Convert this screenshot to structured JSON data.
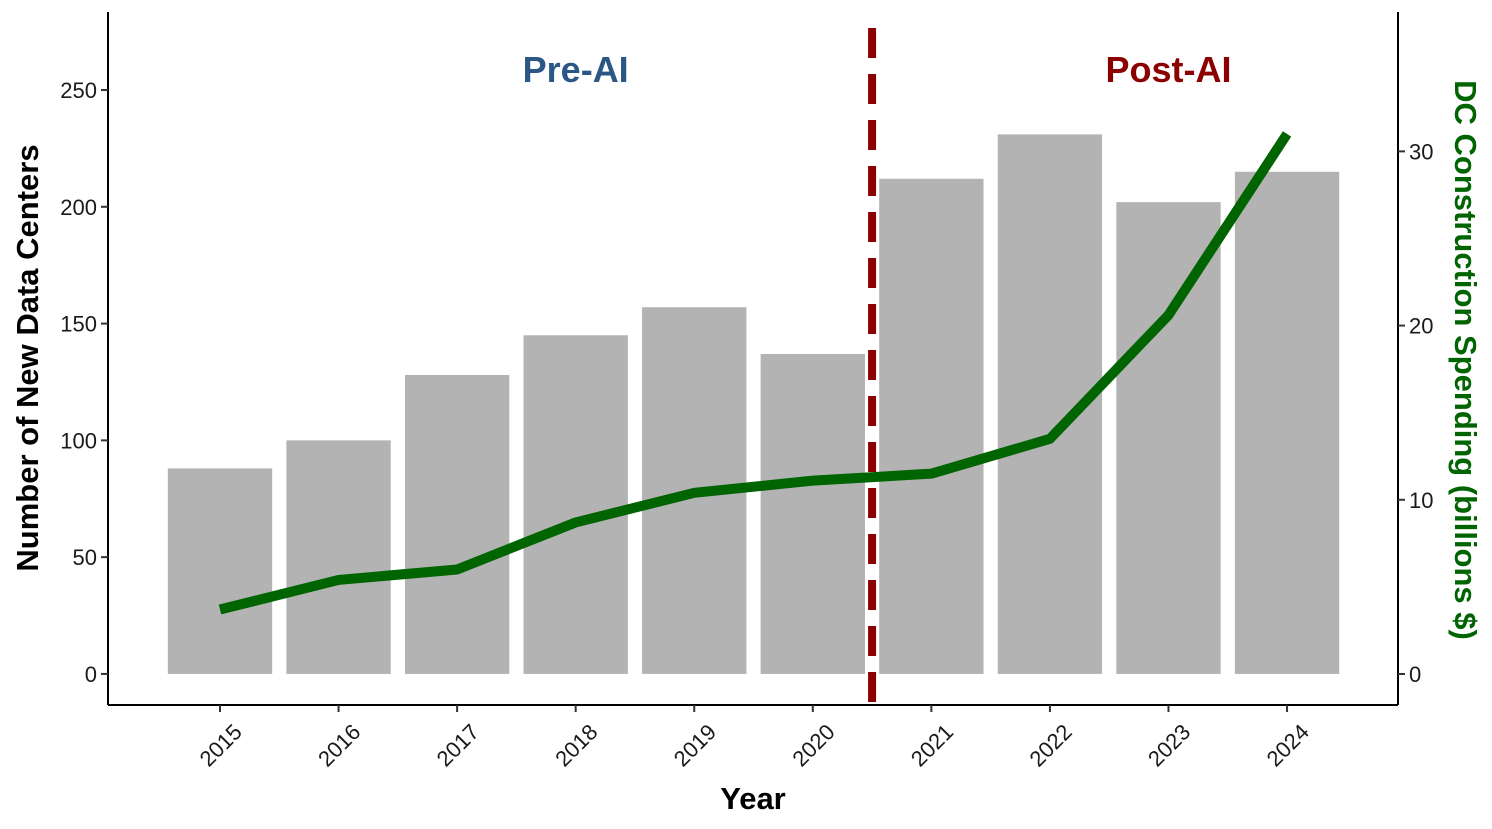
{
  "chart_data": {
    "type": "bar",
    "x_label": "Year",
    "y_label": "Number of New Data Centers",
    "y2_label": "DC Construction Spending (billions $)",
    "y2_color": "#006400",
    "categories": [
      "2015",
      "2016",
      "2017",
      "2018",
      "2019",
      "2020",
      "2021",
      "2022",
      "2023",
      "2024"
    ],
    "series": [
      {
        "type": "bar",
        "color": "#b3b3b3",
        "values": [
          88,
          100,
          128,
          145,
          157,
          137,
          212,
          231,
          202,
          215
        ]
      },
      {
        "type": "line",
        "axis": "y2",
        "color": "#006400",
        "values": [
          3.7,
          5.4,
          6.0,
          8.7,
          10.4,
          11.1,
          11.5,
          13.5,
          20.6,
          31.0
        ]
      }
    ],
    "ylim": [
      -13.3,
      283.4
    ],
    "yticks": [
      0,
      50,
      100,
      150,
      200,
      250
    ],
    "y2lim": [
      -1.78,
      38.0
    ],
    "y2ticks": [
      0,
      10,
      20,
      30
    ],
    "grid": false,
    "divider": {
      "between": [
        "2020",
        "2021"
      ],
      "color": "#8b0000"
    },
    "annotations": [
      {
        "text": "Pre-AI",
        "x": "2018",
        "y": 259,
        "color": "#2a5783"
      },
      {
        "text": "Post-AI",
        "x": "2023",
        "y": 259,
        "color": "#8b0000"
      }
    ]
  }
}
